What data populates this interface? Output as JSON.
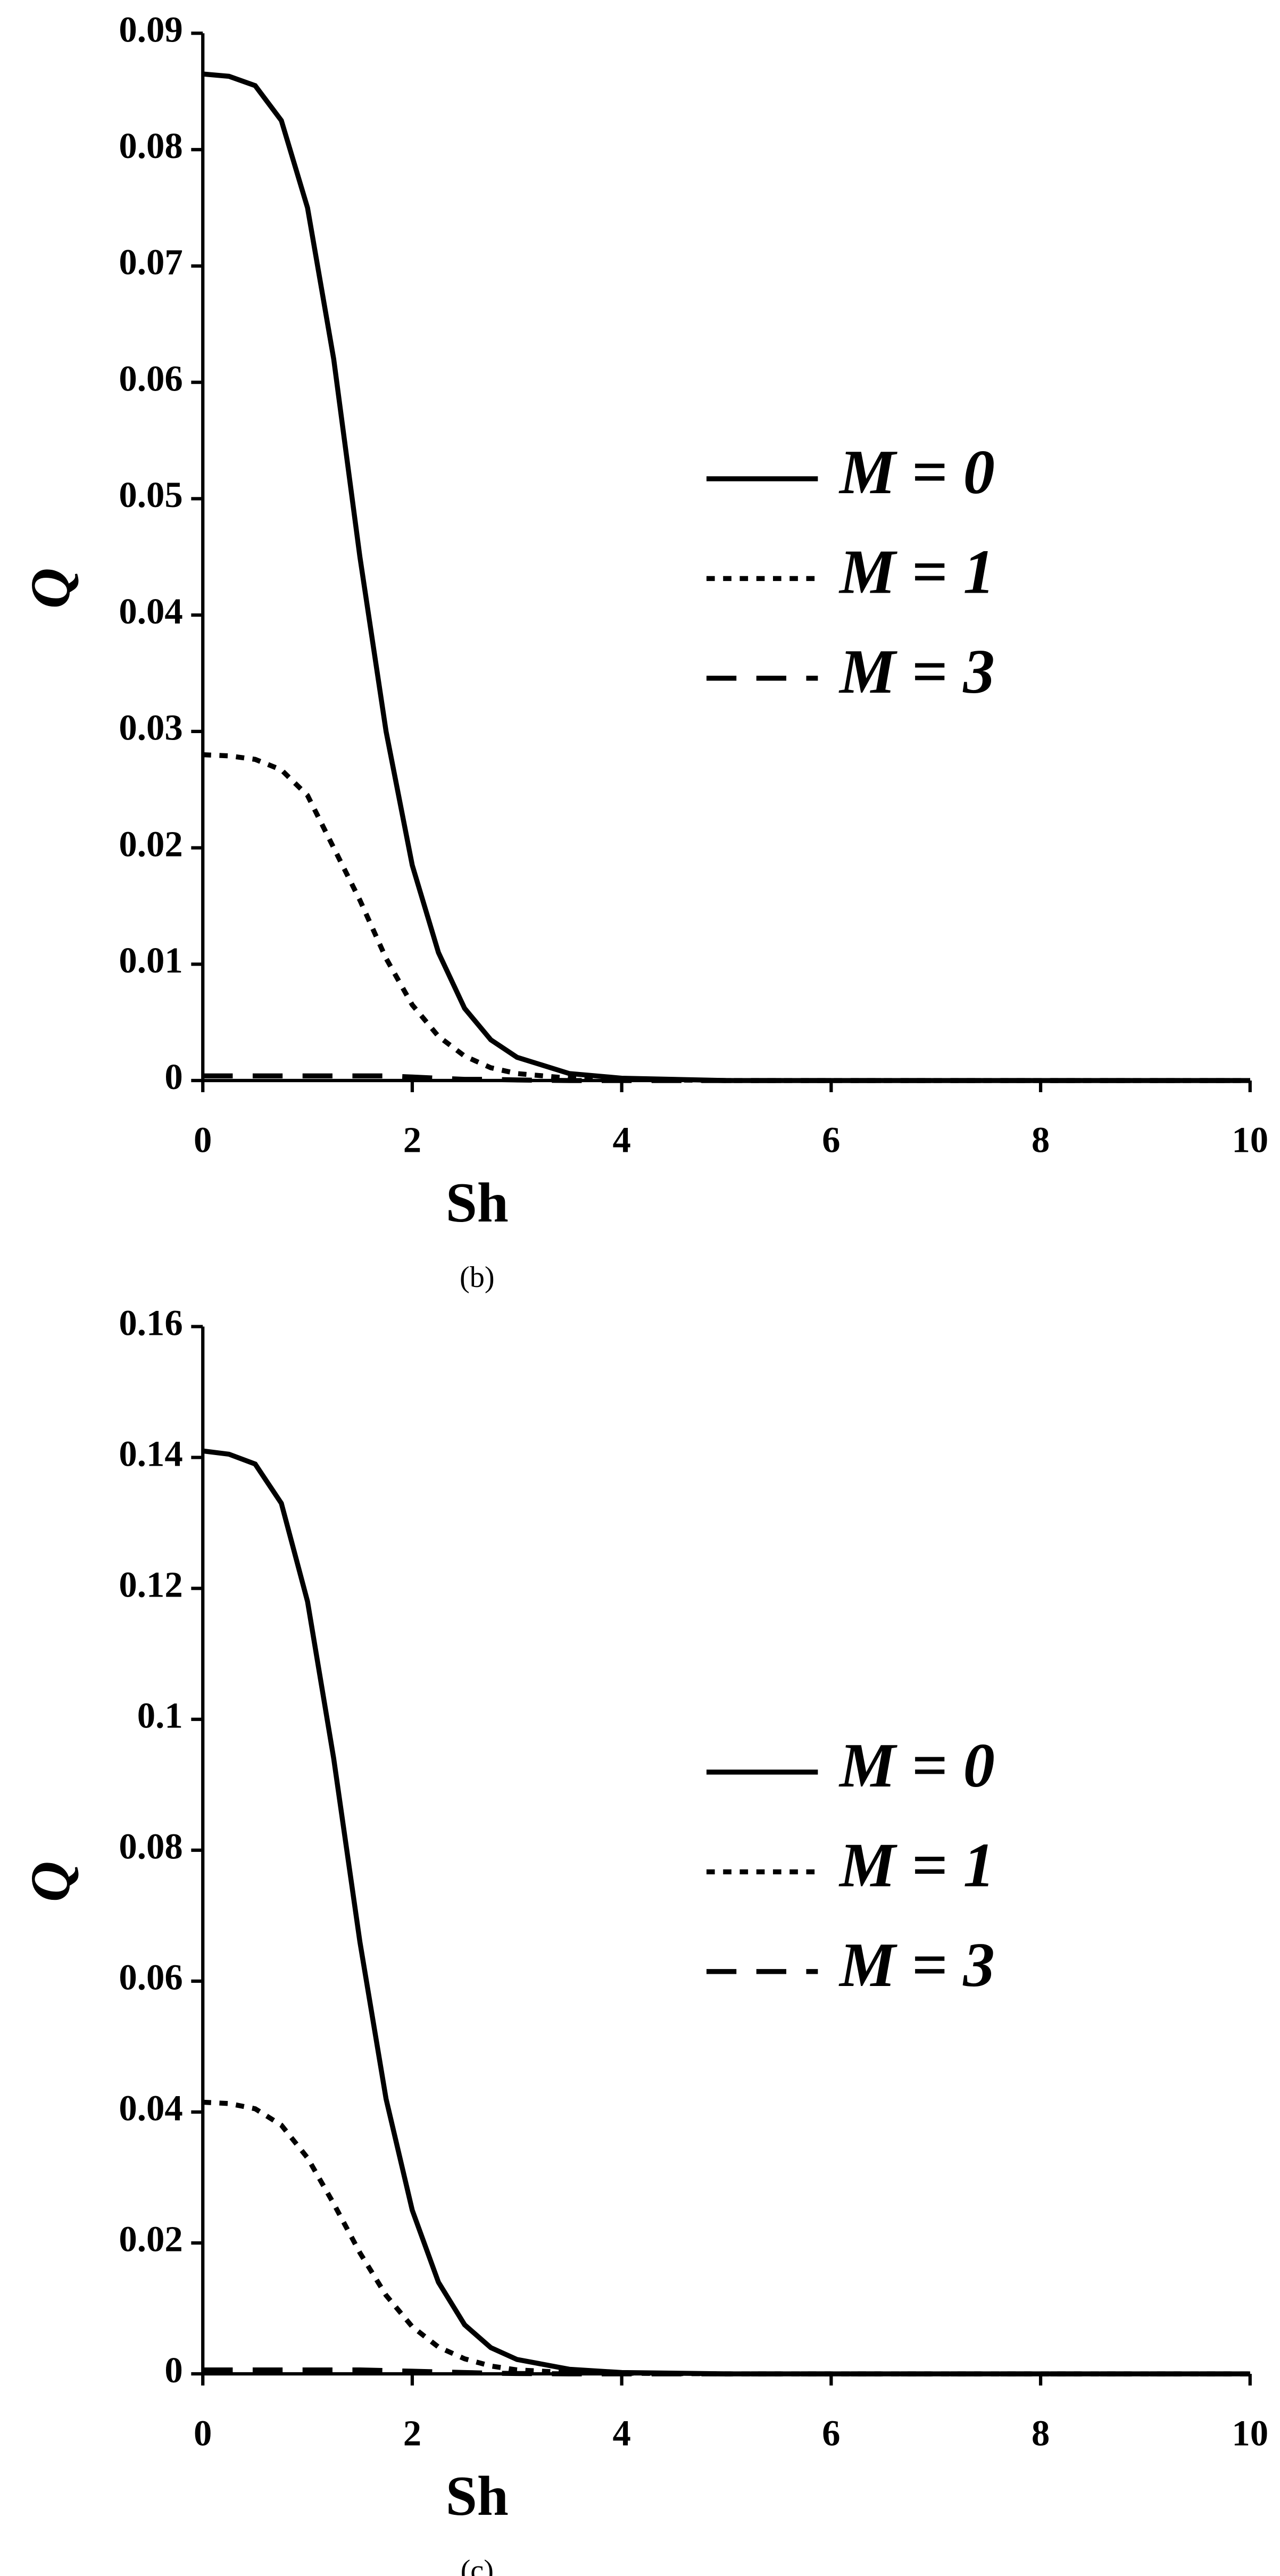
{
  "chart_data": [
    {
      "type": "line",
      "caption": "(b)",
      "x_label": "Sh",
      "y_label": "Q",
      "x": [
        0,
        0.25,
        0.5,
        0.75,
        1,
        1.25,
        1.5,
        1.75,
        2,
        2.25,
        2.5,
        2.75,
        3,
        3.5,
        4,
        5,
        6,
        7,
        8,
        9,
        10
      ],
      "series": [
        {
          "name": "M = 0",
          "color": "#000000",
          "linestyle": "solid",
          "values": [
            0.0865,
            0.0863,
            0.0855,
            0.0825,
            0.075,
            0.062,
            0.045,
            0.03,
            0.0185,
            0.011,
            0.0062,
            0.0035,
            0.002,
            0.0006,
            0.0002,
            0,
            0,
            0,
            0,
            0,
            0
          ]
        },
        {
          "name": "M = 1",
          "color": "#000000",
          "linestyle": "dotted",
          "values": [
            0.028,
            0.0279,
            0.0276,
            0.0267,
            0.0245,
            0.02,
            0.0155,
            0.0105,
            0.0065,
            0.0038,
            0.0021,
            0.0011,
            0.0006,
            0.0002,
            0.0001,
            0,
            0,
            0,
            0,
            0,
            0
          ]
        },
        {
          "name": "M = 3",
          "color": "#000000",
          "linestyle": "dashed",
          "values": [
            0.0004,
            0.0004,
            0.0004,
            0.0004,
            0.0004,
            0.0004,
            0.0004,
            0.0004,
            0.0003,
            0.0002,
            0.0001,
            0.0001,
            5e-05,
            0,
            0,
            0,
            0,
            0,
            0,
            0,
            0
          ]
        }
      ],
      "xlim": [
        0,
        10
      ],
      "xticks": [
        0,
        2,
        4,
        6,
        8,
        10
      ],
      "ylim": [
        0,
        0.09
      ],
      "yticks": [
        0,
        0.01,
        0.02,
        0.03,
        0.04,
        0.05,
        0.06,
        0.07,
        0.08,
        0.09
      ],
      "grid": false,
      "legend": "right"
    },
    {
      "type": "line",
      "caption": "(c)",
      "x_label": "Sh",
      "y_label": "Q",
      "x": [
        0,
        0.25,
        0.5,
        0.75,
        1,
        1.25,
        1.5,
        1.75,
        2,
        2.25,
        2.5,
        2.75,
        3,
        3.5,
        4,
        5,
        6,
        7,
        8,
        9,
        10
      ],
      "series": [
        {
          "name": "M = 0",
          "color": "#000000",
          "linestyle": "solid",
          "values": [
            0.141,
            0.1405,
            0.139,
            0.133,
            0.118,
            0.094,
            0.066,
            0.042,
            0.025,
            0.014,
            0.0075,
            0.004,
            0.0022,
            0.0007,
            0.0002,
            0,
            0,
            0,
            0,
            0,
            0
          ]
        },
        {
          "name": "M = 1",
          "color": "#000000",
          "linestyle": "dotted",
          "values": [
            0.0415,
            0.0413,
            0.0405,
            0.038,
            0.033,
            0.026,
            0.0185,
            0.012,
            0.0072,
            0.0041,
            0.0023,
            0.0012,
            0.0006,
            0.0002,
            0.0001,
            0,
            0,
            0,
            0,
            0,
            0
          ]
        },
        {
          "name": "M = 3",
          "color": "#000000",
          "linestyle": "dashed",
          "values": [
            0.0006,
            0.0006,
            0.0006,
            0.0006,
            0.0006,
            0.0006,
            0.0006,
            0.0005,
            0.0004,
            0.0003,
            0.0002,
            0.0001,
            5e-05,
            0,
            0,
            0,
            0,
            0,
            0,
            0,
            0
          ]
        }
      ],
      "xlim": [
        0,
        10
      ],
      "xticks": [
        0,
        2,
        4,
        6,
        8,
        10
      ],
      "ylim": [
        0,
        0.16
      ],
      "yticks": [
        0,
        0.02,
        0.04,
        0.06,
        0.08,
        0.1,
        0.12,
        0.14,
        0.16
      ],
      "grid": false,
      "legend": "right"
    }
  ]
}
